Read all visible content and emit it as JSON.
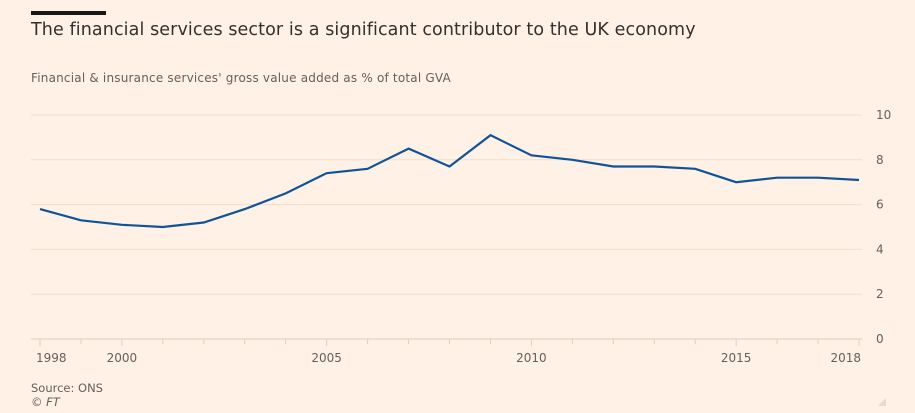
{
  "header": {
    "title": "The financial services sector is a significant contributor to the UK economy",
    "subtitle": "Financial & insurance services' gross value added as % of total GVA"
  },
  "footer": {
    "source": "Source: ONS",
    "copyright": "© FT"
  },
  "colors": {
    "background": "#fff1e5",
    "line": "#0f5499",
    "grid": "#f2dfce",
    "text": "#66605c"
  },
  "chart_data": {
    "type": "line",
    "title": "The financial services sector is a significant contributor to the UK economy",
    "subtitle": "Financial & insurance services' gross value added as % of total GVA",
    "xlabel": "",
    "ylabel": "",
    "x": [
      1998,
      1999,
      2000,
      2001,
      2002,
      2003,
      2004,
      2005,
      2006,
      2007,
      2008,
      2009,
      2010,
      2011,
      2012,
      2013,
      2014,
      2015,
      2016,
      2017,
      2018
    ],
    "series": [
      {
        "name": "Financial & insurance services GVA % of total",
        "values": [
          5.8,
          5.3,
          5.1,
          5.0,
          5.2,
          5.8,
          6.5,
          7.4,
          7.6,
          8.5,
          7.7,
          9.1,
          8.2,
          8.0,
          7.7,
          7.7,
          7.6,
          7.0,
          7.2,
          7.2,
          7.1
        ]
      }
    ],
    "xlim": [
      1998,
      2018
    ],
    "ylim": [
      0,
      10
    ],
    "x_ticks": [
      1998,
      1999,
      2000,
      2001,
      2002,
      2003,
      2004,
      2005,
      2006,
      2007,
      2008,
      2009,
      2010,
      2011,
      2012,
      2013,
      2014,
      2015,
      2016,
      2017,
      2018
    ],
    "x_tick_labels": [
      {
        "year": 1998,
        "label": "1998"
      },
      {
        "year": 2000,
        "label": "2000"
      },
      {
        "year": 2005,
        "label": "2005"
      },
      {
        "year": 2010,
        "label": "2010"
      },
      {
        "year": 2015,
        "label": "2015"
      },
      {
        "year": 2018,
        "label": "2018"
      }
    ],
    "y_ticks": [
      0,
      2,
      4,
      6,
      8,
      10
    ],
    "y_axis_side": "right",
    "grid": true,
    "legend": "none"
  }
}
